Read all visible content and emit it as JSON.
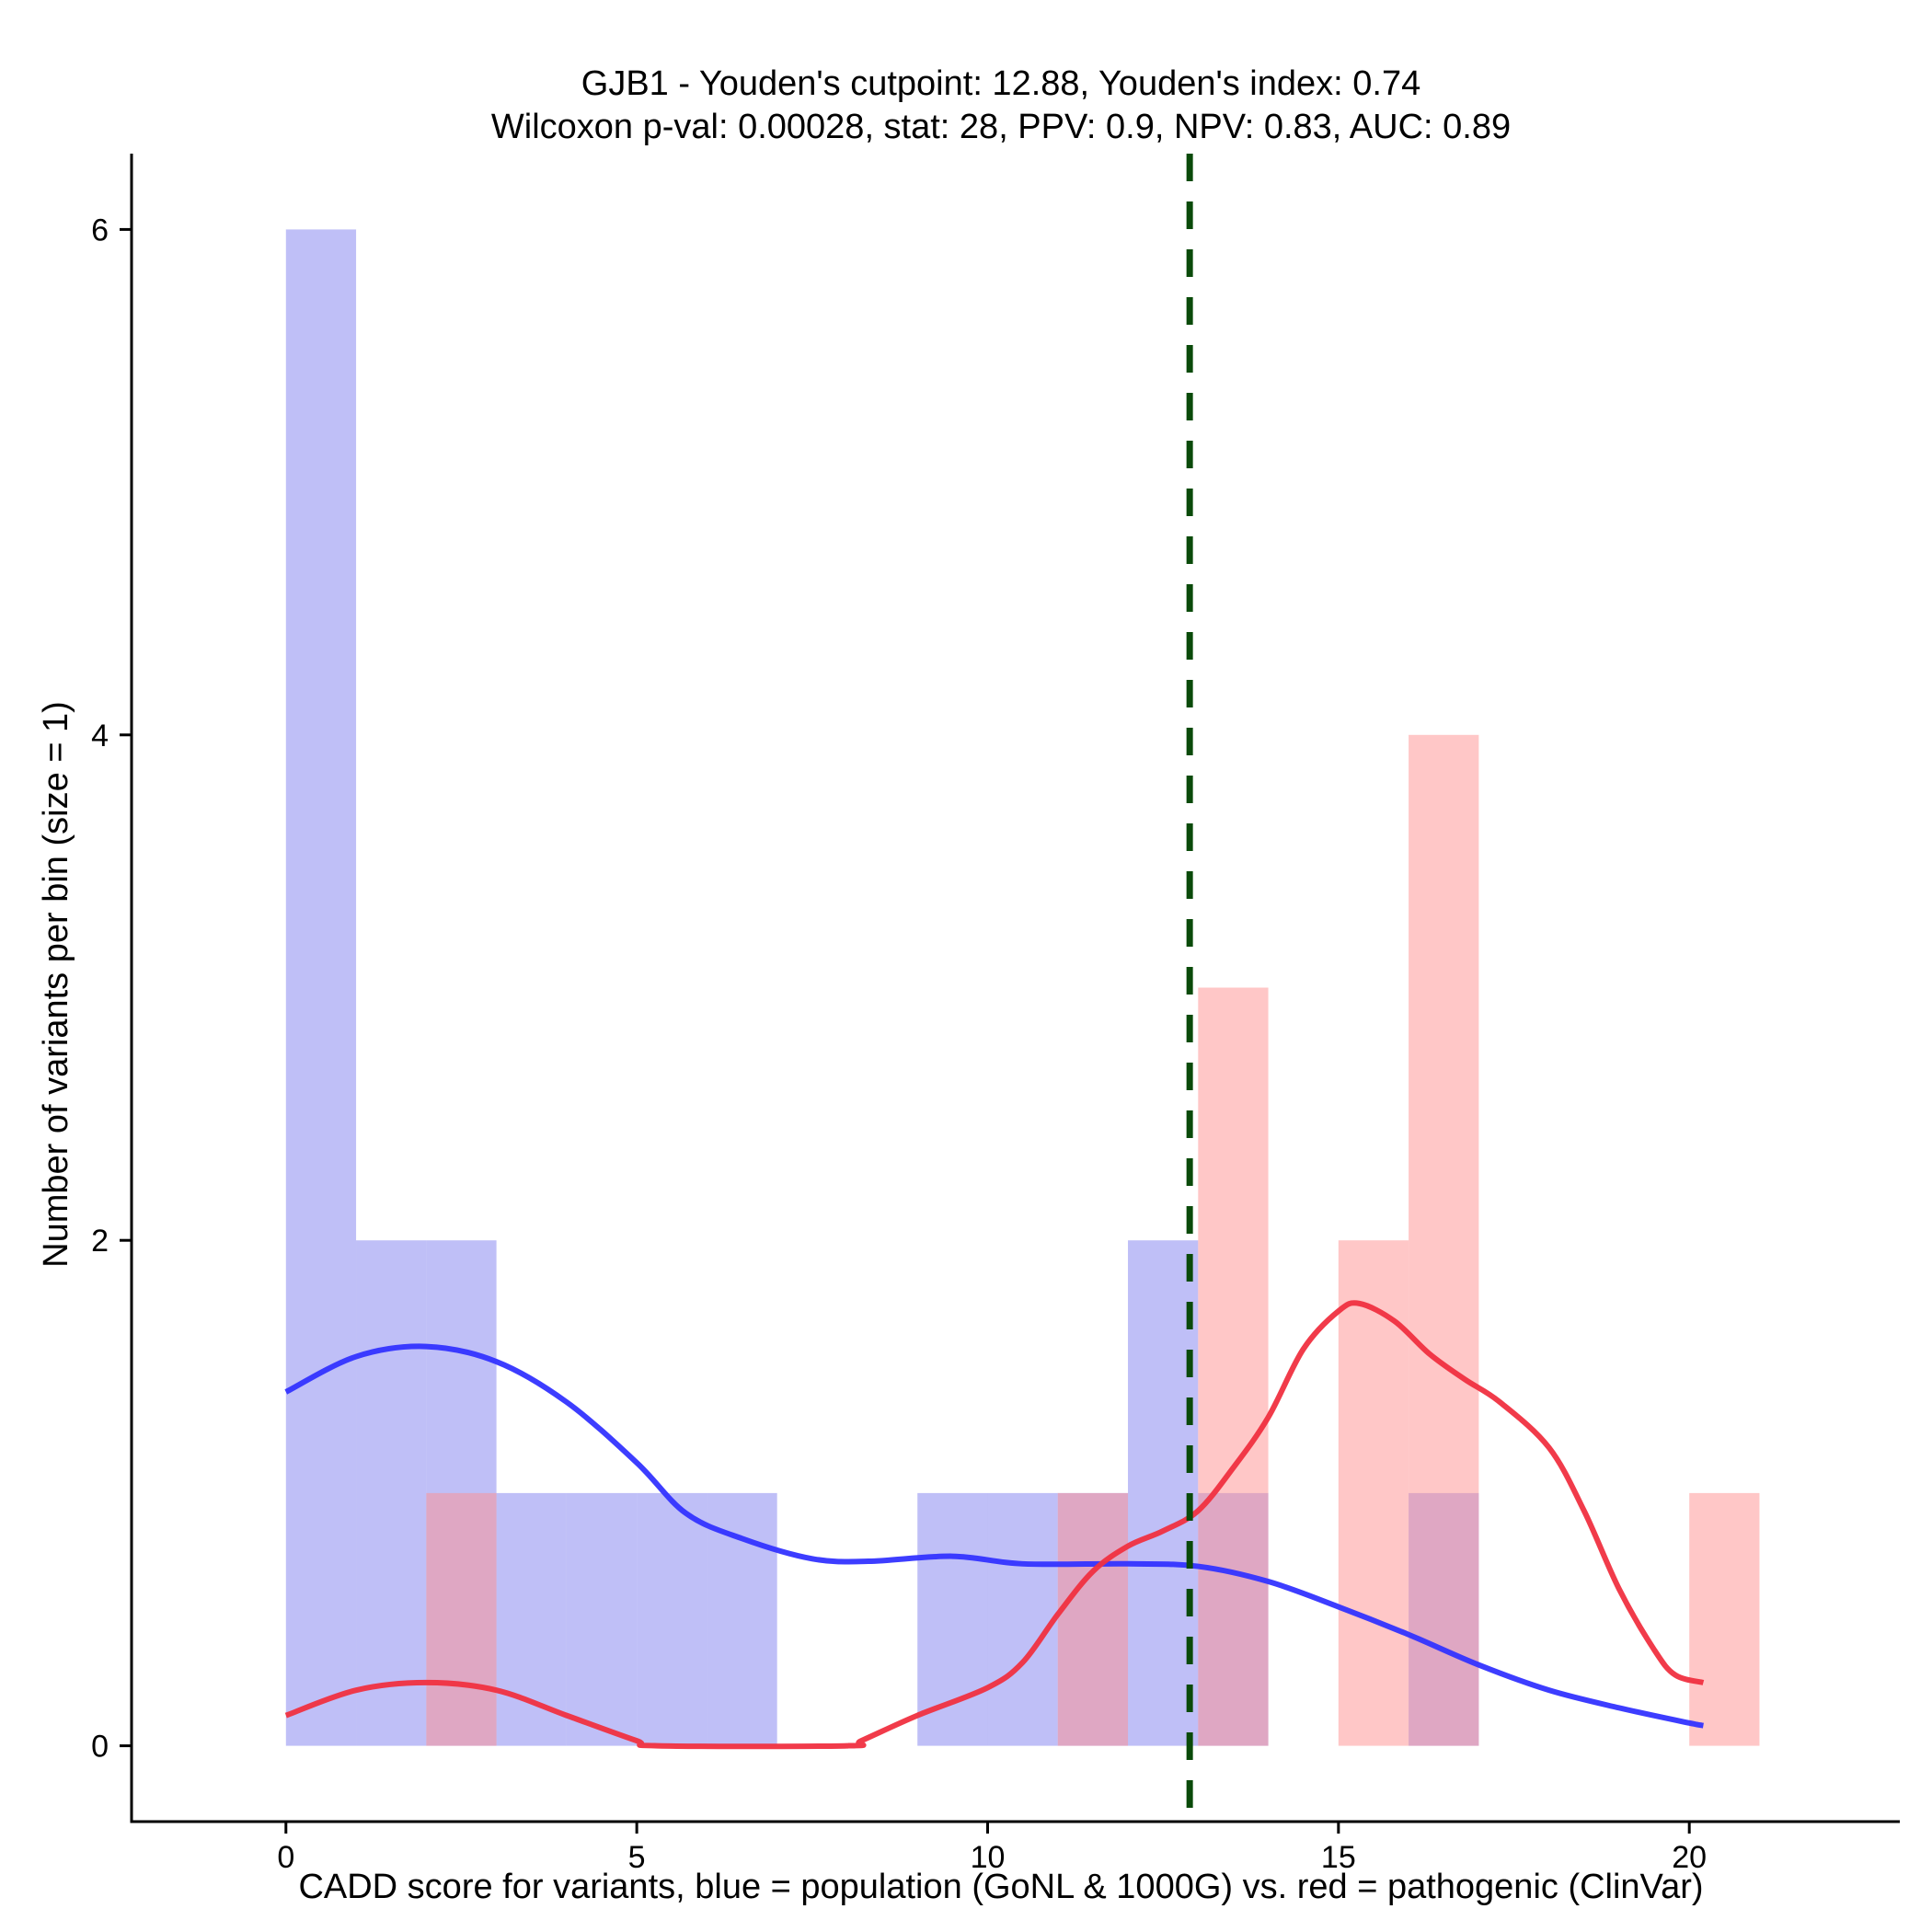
{
  "chart_data": {
    "type": "bar",
    "title": "GJB1 - Youden's cutpoint: 12.88, Youden's index: 0.74",
    "subtitle": "Wilcoxon p-val: 0.00028, stat: 28, PPV: 0.9, NPV: 0.83, AUC: 0.89",
    "xlabel": "CADD score for variants, blue = population (GoNL & 1000G) vs. red = pathogenic (ClinVar)",
    "ylabel": "Number of variants per bin (size = 1)",
    "xlim": [
      -2.2,
      23.0
    ],
    "ylim": [
      -0.3,
      6.3
    ],
    "x_ticks": [
      0,
      5,
      10,
      15,
      20
    ],
    "y_ticks": [
      0,
      2,
      4,
      6
    ],
    "bin_width": 1,
    "cutpoint": 12.88,
    "series": [
      {
        "name": "population (GoNL & 1000G)",
        "color": "#8080f0",
        "bins": [
          {
            "start": 0,
            "count": 6
          },
          {
            "start": 1,
            "count": 2
          },
          {
            "start": 2,
            "count": 2
          },
          {
            "start": 3,
            "count": 1
          },
          {
            "start": 4,
            "count": 1
          },
          {
            "start": 5,
            "count": 1
          },
          {
            "start": 6,
            "count": 1
          },
          {
            "start": 9,
            "count": 1
          },
          {
            "start": 10,
            "count": 1
          },
          {
            "start": 11,
            "count": 1
          },
          {
            "start": 12,
            "count": 2
          },
          {
            "start": 13,
            "count": 1
          },
          {
            "start": 16,
            "count": 1
          }
        ],
        "density_color": "#3333ff",
        "density": [
          [
            0,
            1.4
          ],
          [
            1,
            1.54
          ],
          [
            2,
            1.58
          ],
          [
            3,
            1.52
          ],
          [
            4,
            1.36
          ],
          [
            5,
            1.12
          ],
          [
            5.7,
            0.92
          ],
          [
            6.5,
            0.82
          ],
          [
            7.5,
            0.74
          ],
          [
            8.3,
            0.73
          ],
          [
            9.5,
            0.75
          ],
          [
            10.5,
            0.72
          ],
          [
            12,
            0.72
          ],
          [
            13,
            0.71
          ],
          [
            14,
            0.65
          ],
          [
            15,
            0.55
          ],
          [
            16,
            0.44
          ],
          [
            17,
            0.32
          ],
          [
            18,
            0.22
          ],
          [
            19,
            0.15
          ],
          [
            20,
            0.09
          ],
          [
            20.2,
            0.08
          ]
        ]
      },
      {
        "name": "pathogenic (ClinVar)",
        "color": "#ff9090",
        "bins": [
          {
            "start": 2,
            "count": 1
          },
          {
            "start": 11,
            "count": 1
          },
          {
            "start": 13,
            "count": 3
          },
          {
            "start": 15,
            "count": 2
          },
          {
            "start": 16,
            "count": 4
          },
          {
            "start": 20,
            "count": 1
          }
        ],
        "density_color": "#f03040",
        "density": [
          [
            0,
            0.12
          ],
          [
            1,
            0.22
          ],
          [
            2,
            0.25
          ],
          [
            3,
            0.22
          ],
          [
            4,
            0.12
          ],
          [
            5,
            0.02
          ],
          [
            5.3,
            0.0
          ],
          [
            8.0,
            0.0
          ],
          [
            8.2,
            0.02
          ],
          [
            9,
            0.12
          ],
          [
            10,
            0.23
          ],
          [
            10.5,
            0.33
          ],
          [
            11,
            0.52
          ],
          [
            11.5,
            0.69
          ],
          [
            12,
            0.79
          ],
          [
            12.5,
            0.85
          ],
          [
            13,
            0.93
          ],
          [
            13.5,
            1.1
          ],
          [
            14,
            1.3
          ],
          [
            14.5,
            1.57
          ],
          [
            15,
            1.72
          ],
          [
            15.3,
            1.75
          ],
          [
            15.8,
            1.68
          ],
          [
            16.3,
            1.55
          ],
          [
            16.8,
            1.45
          ],
          [
            17.3,
            1.36
          ],
          [
            18,
            1.18
          ],
          [
            18.5,
            0.93
          ],
          [
            19,
            0.62
          ],
          [
            19.5,
            0.38
          ],
          [
            19.8,
            0.28
          ],
          [
            20.2,
            0.25
          ]
        ]
      }
    ],
    "cutpoint_color": "#0a4a0a"
  }
}
